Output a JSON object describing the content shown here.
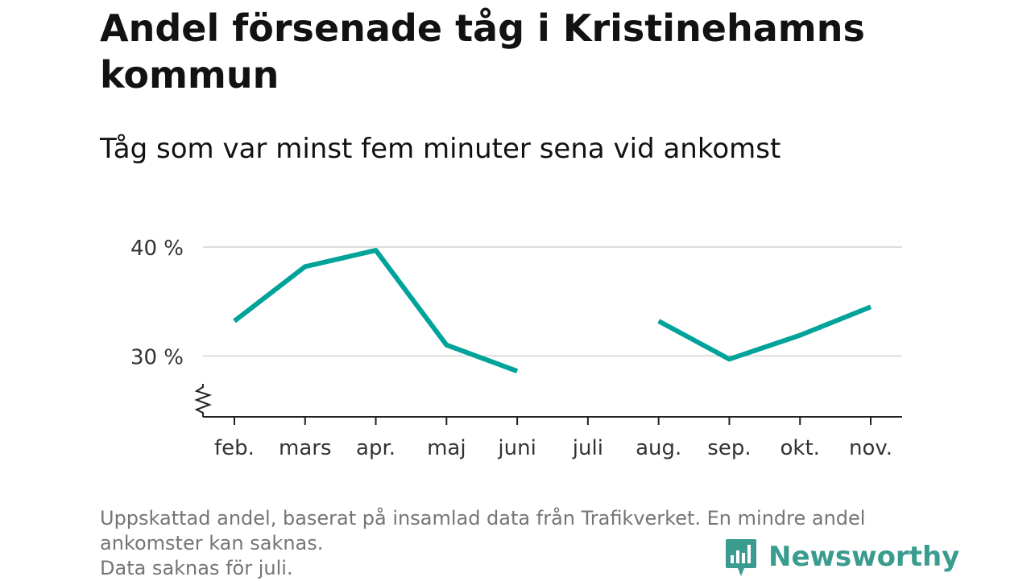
{
  "title": "Andel försenade tåg i Kristinehamns kommun",
  "subtitle": "Tåg som var minst fem minuter sena vid ankomst",
  "chart_data": {
    "type": "line",
    "categories": [
      "feb.",
      "mars",
      "apr.",
      "maj",
      "juni",
      "juli",
      "aug.",
      "sep.",
      "okt.",
      "nov."
    ],
    "series": [
      {
        "values": [
          33.2,
          38.2,
          39.7,
          31.0,
          28.6,
          null,
          33.2,
          29.7,
          31.9,
          34.5
        ],
        "color": "#00a39a"
      }
    ],
    "y_ticks": [
      30,
      40
    ],
    "y_tick_labels": [
      "30 %",
      "40 %"
    ],
    "ylim": [
      24.4,
      40.0
    ],
    "y_axis_break": true,
    "grid": true,
    "grid_color": "#dddddd",
    "xlabel": "",
    "ylabel": ""
  },
  "footer": {
    "note_line1": "Uppskattad andel, baserat på insamlad data från Trafikverket. En mindre andel",
    "note_line2": "ankomster kan saknas.",
    "note_line3": "Data saknas för juli."
  },
  "logo": {
    "text": "Newsworthy",
    "icon": "newsworthy-bar-chart-icon",
    "color": "#3a9c8e"
  }
}
